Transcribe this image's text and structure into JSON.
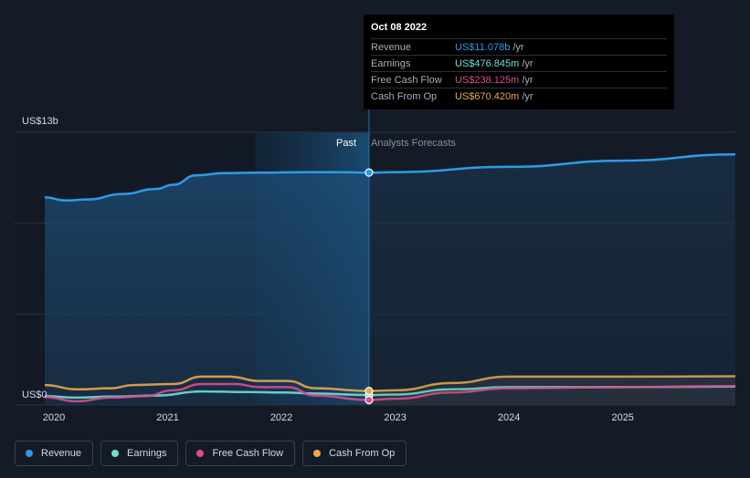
{
  "chart_data": {
    "type": "area",
    "y_top_label": "US$13b",
    "y_zero_label": "US$0",
    "ylim": [
      0,
      13
    ],
    "xlim": [
      2019.92,
      2025.99
    ],
    "x_ticks": [
      "2020",
      "2021",
      "2022",
      "2023",
      "2024",
      "2025"
    ],
    "past_label": "Past",
    "forecast_label": "Analysts Forecasts",
    "highlight_start": 2021.77,
    "divider_x": 2022.77,
    "grid": true,
    "series": [
      {
        "name": "Revenue",
        "color": "#2d9be8",
        "points": [
          [
            2019.92,
            9.9
          ],
          [
            2020.1,
            9.75
          ],
          [
            2020.3,
            9.8
          ],
          [
            2020.6,
            10.05
          ],
          [
            2020.9,
            10.3
          ],
          [
            2021.05,
            10.5
          ],
          [
            2021.25,
            10.95
          ],
          [
            2021.5,
            11.05
          ],
          [
            2021.8,
            11.08
          ],
          [
            2022.2,
            11.1
          ],
          [
            2022.5,
            11.1
          ],
          [
            2022.77,
            11.08
          ],
          [
            2023.0,
            11.1
          ],
          [
            2024.0,
            11.35
          ],
          [
            2025.0,
            11.65
          ],
          [
            2025.99,
            11.95
          ]
        ],
        "forecast_from": 2022.77
      },
      {
        "name": "Earnings",
        "color": "#6de0d0",
        "points": [
          [
            2019.92,
            0.42
          ],
          [
            2020.2,
            0.35
          ],
          [
            2020.5,
            0.4
          ],
          [
            2020.9,
            0.45
          ],
          [
            2021.3,
            0.65
          ],
          [
            2021.7,
            0.62
          ],
          [
            2022.0,
            0.6
          ],
          [
            2022.3,
            0.55
          ],
          [
            2022.77,
            0.477
          ],
          [
            2023.0,
            0.5
          ],
          [
            2023.5,
            0.75
          ],
          [
            2024.0,
            0.85
          ],
          [
            2025.0,
            0.85
          ],
          [
            2025.99,
            0.88
          ]
        ],
        "forecast_from": 2022.77
      },
      {
        "name": "Free Cash Flow",
        "color": "#d94d8f",
        "points": [
          [
            2019.92,
            0.38
          ],
          [
            2020.2,
            0.18
          ],
          [
            2020.5,
            0.35
          ],
          [
            2020.8,
            0.42
          ],
          [
            2021.05,
            0.7
          ],
          [
            2021.3,
            1.0
          ],
          [
            2021.6,
            1.0
          ],
          [
            2021.8,
            0.85
          ],
          [
            2022.05,
            0.85
          ],
          [
            2022.3,
            0.45
          ],
          [
            2022.77,
            0.238
          ],
          [
            2023.0,
            0.3
          ],
          [
            2023.5,
            0.6
          ],
          [
            2024.0,
            0.8
          ],
          [
            2025.0,
            0.85
          ],
          [
            2025.99,
            0.9
          ]
        ],
        "forecast_from": 2022.77
      },
      {
        "name": "Cash From Op",
        "color": "#e8a94f",
        "points": [
          [
            2019.92,
            0.95
          ],
          [
            2020.2,
            0.75
          ],
          [
            2020.5,
            0.8
          ],
          [
            2020.7,
            0.95
          ],
          [
            2021.05,
            1.0
          ],
          [
            2021.3,
            1.35
          ],
          [
            2021.55,
            1.35
          ],
          [
            2021.8,
            1.15
          ],
          [
            2022.05,
            1.15
          ],
          [
            2022.3,
            0.8
          ],
          [
            2022.77,
            0.67
          ],
          [
            2023.0,
            0.7
          ],
          [
            2023.5,
            1.05
          ],
          [
            2024.0,
            1.35
          ],
          [
            2025.0,
            1.35
          ],
          [
            2025.99,
            1.37
          ]
        ],
        "forecast_from": 2022.77
      }
    ]
  },
  "tooltip": {
    "date": "Oct 08 2022",
    "rows": [
      {
        "name": "Revenue",
        "value": "US$11.078b",
        "unit": "/yr",
        "color": "#2d9be8"
      },
      {
        "name": "Earnings",
        "value": "US$476.845m",
        "unit": "/yr",
        "color": "#6de0d0"
      },
      {
        "name": "Free Cash Flow",
        "value": "US$238.125m",
        "unit": "/yr",
        "color": "#d94d8f"
      },
      {
        "name": "Cash From Op",
        "value": "US$670.420m",
        "unit": "/yr",
        "color": "#e8a94f"
      }
    ]
  },
  "legend": [
    {
      "label": "Revenue",
      "color": "#2d9be8"
    },
    {
      "label": "Earnings",
      "color": "#6de0d0"
    },
    {
      "label": "Free Cash Flow",
      "color": "#d94d8f"
    },
    {
      "label": "Cash From Op",
      "color": "#e8a94f"
    }
  ]
}
